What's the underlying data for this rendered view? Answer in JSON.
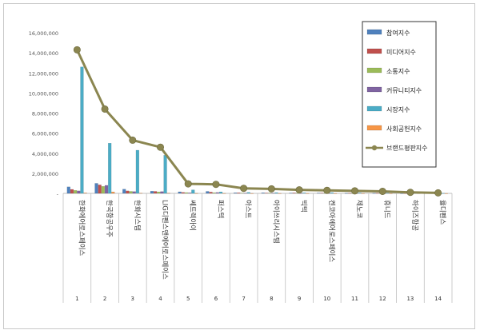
{
  "chart_data": {
    "type": "bar",
    "title": "",
    "xlabel": "",
    "ylabel": "",
    "ylim": [
      0,
      16000000
    ],
    "yticks": [
      "-",
      "2,000,000",
      "4,000,000",
      "6,000,000",
      "8,000,000",
      "10,000,000",
      "12,000,000",
      "14,000,000",
      "16,000,000"
    ],
    "grid": false,
    "legend_position": "top-right",
    "indices": [
      "1",
      "2",
      "3",
      "4",
      "5",
      "6",
      "7",
      "8",
      "9",
      "10",
      "11",
      "12",
      "13",
      "14"
    ],
    "categories": [
      "한화에어로스페이스",
      "한국항공우주",
      "한화시스템",
      "LIG디펜스앤에어로스페이스",
      "쎄트렉아이",
      "퍼스텍",
      "아스트",
      "아이쓰리시스템",
      "빅텍",
      "켄코아에어로스페이스",
      "제노코",
      "휴니드",
      "하이즈항공",
      "율디펜스"
    ],
    "series": [
      {
        "name": "참여지수",
        "type": "bar",
        "color": "#4f81bd",
        "values": [
          650000,
          1000000,
          420000,
          220000,
          160000,
          200000,
          60000,
          60000,
          40000,
          40000,
          20000,
          20000,
          10000,
          10000
        ]
      },
      {
        "name": "미디어지수",
        "type": "bar",
        "color": "#c0504d",
        "values": [
          400000,
          850000,
          250000,
          200000,
          100000,
          130000,
          60000,
          40000,
          50000,
          40000,
          20000,
          20000,
          15000,
          10000
        ]
      },
      {
        "name": "소통지수",
        "type": "bar",
        "color": "#9bbb59",
        "values": [
          300000,
          700000,
          200000,
          150000,
          80000,
          70000,
          40000,
          40000,
          30000,
          30000,
          20000,
          15000,
          10000,
          8000
        ]
      },
      {
        "name": "커뮤니티지수",
        "type": "bar",
        "color": "#8064a2",
        "values": [
          250000,
          800000,
          180000,
          180000,
          60000,
          90000,
          30000,
          30000,
          25000,
          20000,
          15000,
          10000,
          8000,
          5000
        ]
      },
      {
        "name": "시장지수",
        "type": "bar",
        "color": "#4bacc6",
        "values": [
          12600000,
          5000000,
          4300000,
          3800000,
          350000,
          150000,
          100000,
          80000,
          60000,
          80000,
          50000,
          30000,
          20000,
          15000
        ]
      },
      {
        "name": "사회공헌지수",
        "type": "bar",
        "color": "#f79646",
        "values": [
          50000,
          150000,
          30000,
          30000,
          10000,
          10000,
          5000,
          5000,
          5000,
          5000,
          3000,
          3000,
          2000,
          2000
        ]
      },
      {
        "name": "브랜드평판지수",
        "type": "line",
        "color": "#8b8650",
        "values": [
          14300000,
          8400000,
          5300000,
          4600000,
          950000,
          900000,
          500000,
          450000,
          350000,
          300000,
          250000,
          200000,
          100000,
          50000
        ]
      }
    ]
  }
}
